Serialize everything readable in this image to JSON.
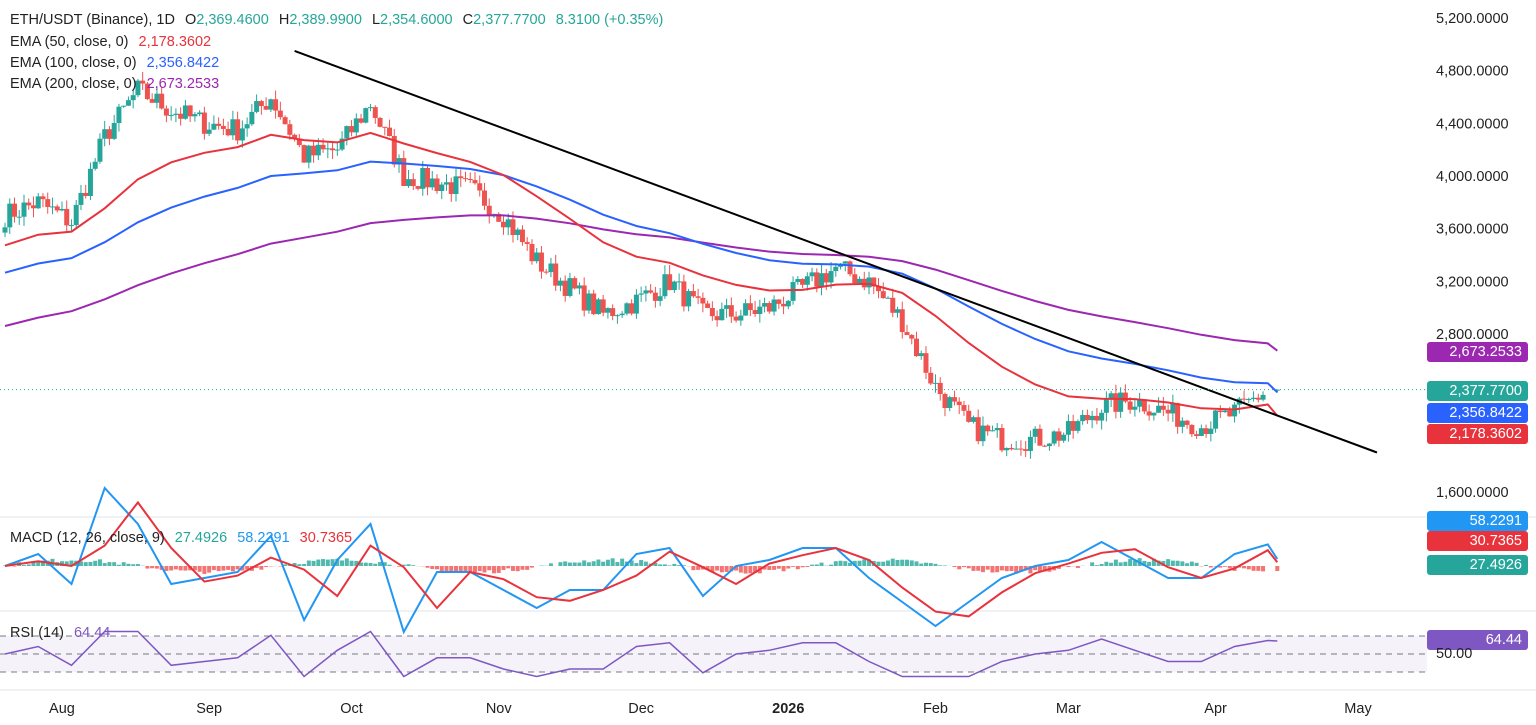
{
  "header": {
    "symbol": "ETH/USDT (Binance), 1D",
    "open_label": "O",
    "open": "2,369.4600",
    "high_label": "H",
    "high": "2,389.9900",
    "low_label": "L",
    "low": "2,354.6000",
    "close_label": "C",
    "close": "2,377.7700",
    "change": "8.3100 (+0.35%)"
  },
  "indicators": {
    "ema50": {
      "label": "EMA (50, close, 0)",
      "value": "2,178.3602"
    },
    "ema100": {
      "label": "EMA (100, close, 0)",
      "value": "2,356.8422"
    },
    "ema200": {
      "label": "EMA (200, close, 0)",
      "value": "2,673.2533"
    },
    "macd": {
      "label": "MACD (12, 26, close, 9)",
      "hist": "27.4926",
      "macd": "58.2291",
      "signal": "30.7365"
    },
    "rsi": {
      "label": "RSI (14)",
      "value": "64.44",
      "level_label": "50.00"
    }
  },
  "tags": {
    "ema200": "2,673.2533",
    "price": "2,377.7700",
    "ema100": "2,356.8422",
    "ema50": "2,178.3602",
    "macd": "58.2291",
    "signal": "30.7365",
    "hist": "27.4926",
    "rsi": "64.44"
  },
  "colors": {
    "up": "#26a69a",
    "down": "#ef5350",
    "ema50": "#e8323c",
    "ema100": "#2962ff",
    "ema200": "#9c27b0",
    "macd": "#2196f3",
    "signal": "#e8323c",
    "rsi": "#7e57c2",
    "trendline": "#000000"
  },
  "chart_data": {
    "type": "candlestick",
    "price_axis": {
      "ticks": [
        "5,200.0000",
        "4,800.0000",
        "4,400.0000",
        "4,000.0000",
        "3,600.0000",
        "3,200.0000",
        "2,800.0000",
        "1,600.0000"
      ],
      "tick_values": [
        5200,
        4800,
        4400,
        4000,
        3600,
        3200,
        2800,
        1600
      ]
    },
    "time_axis": [
      "Aug",
      "Sep",
      "Oct",
      "Nov",
      "Dec",
      "2026",
      "Feb",
      "Mar",
      "Apr",
      "May"
    ],
    "time_axis_dates": [
      "2025-08-01",
      "2025-09-01",
      "2025-10-01",
      "2025-11-01",
      "2025-12-01",
      "2026-01-01",
      "2026-02-01",
      "2026-03-01",
      "2026-04-01",
      "2026-05-01"
    ],
    "close_series": {
      "dates": [
        "2025-07-20",
        "2025-07-27",
        "2025-08-03",
        "2025-08-10",
        "2025-08-17",
        "2025-08-24",
        "2025-08-31",
        "2025-09-07",
        "2025-09-14",
        "2025-09-21",
        "2025-09-28",
        "2025-10-05",
        "2025-10-12",
        "2025-10-19",
        "2025-10-26",
        "2025-11-02",
        "2025-11-09",
        "2025-11-16",
        "2025-11-23",
        "2025-11-30",
        "2025-12-07",
        "2025-12-14",
        "2025-12-21",
        "2025-12-28",
        "2026-01-04",
        "2026-01-11",
        "2026-01-18",
        "2026-01-25",
        "2026-02-01",
        "2026-02-08",
        "2026-02-15",
        "2026-02-22",
        "2026-03-01",
        "2026-03-08",
        "2026-03-15",
        "2026-03-22",
        "2026-03-29",
        "2026-04-05",
        "2026-04-12"
      ],
      "values": [
        3700,
        3800,
        3650,
        4300,
        4650,
        4500,
        4400,
        4350,
        4600,
        4150,
        4200,
        4550,
        4000,
        3950,
        3900,
        3700,
        3350,
        3150,
        2950,
        3050,
        3200,
        2950,
        2950,
        3000,
        3150,
        3300,
        3200,
        2900,
        2400,
        2100,
        2000,
        2000,
        2050,
        2250,
        2300,
        2200,
        2100,
        2200,
        2380
      ]
    },
    "ema_values": {
      "ema50": "2,178.3602",
      "ema100": "2,356.8422",
      "ema200": "2,673.2533"
    },
    "rsi_levels": [
      70,
      50,
      30
    ],
    "macd_last": {
      "macd": 58.2291,
      "signal": 30.7365,
      "hist": 27.4926
    }
  }
}
